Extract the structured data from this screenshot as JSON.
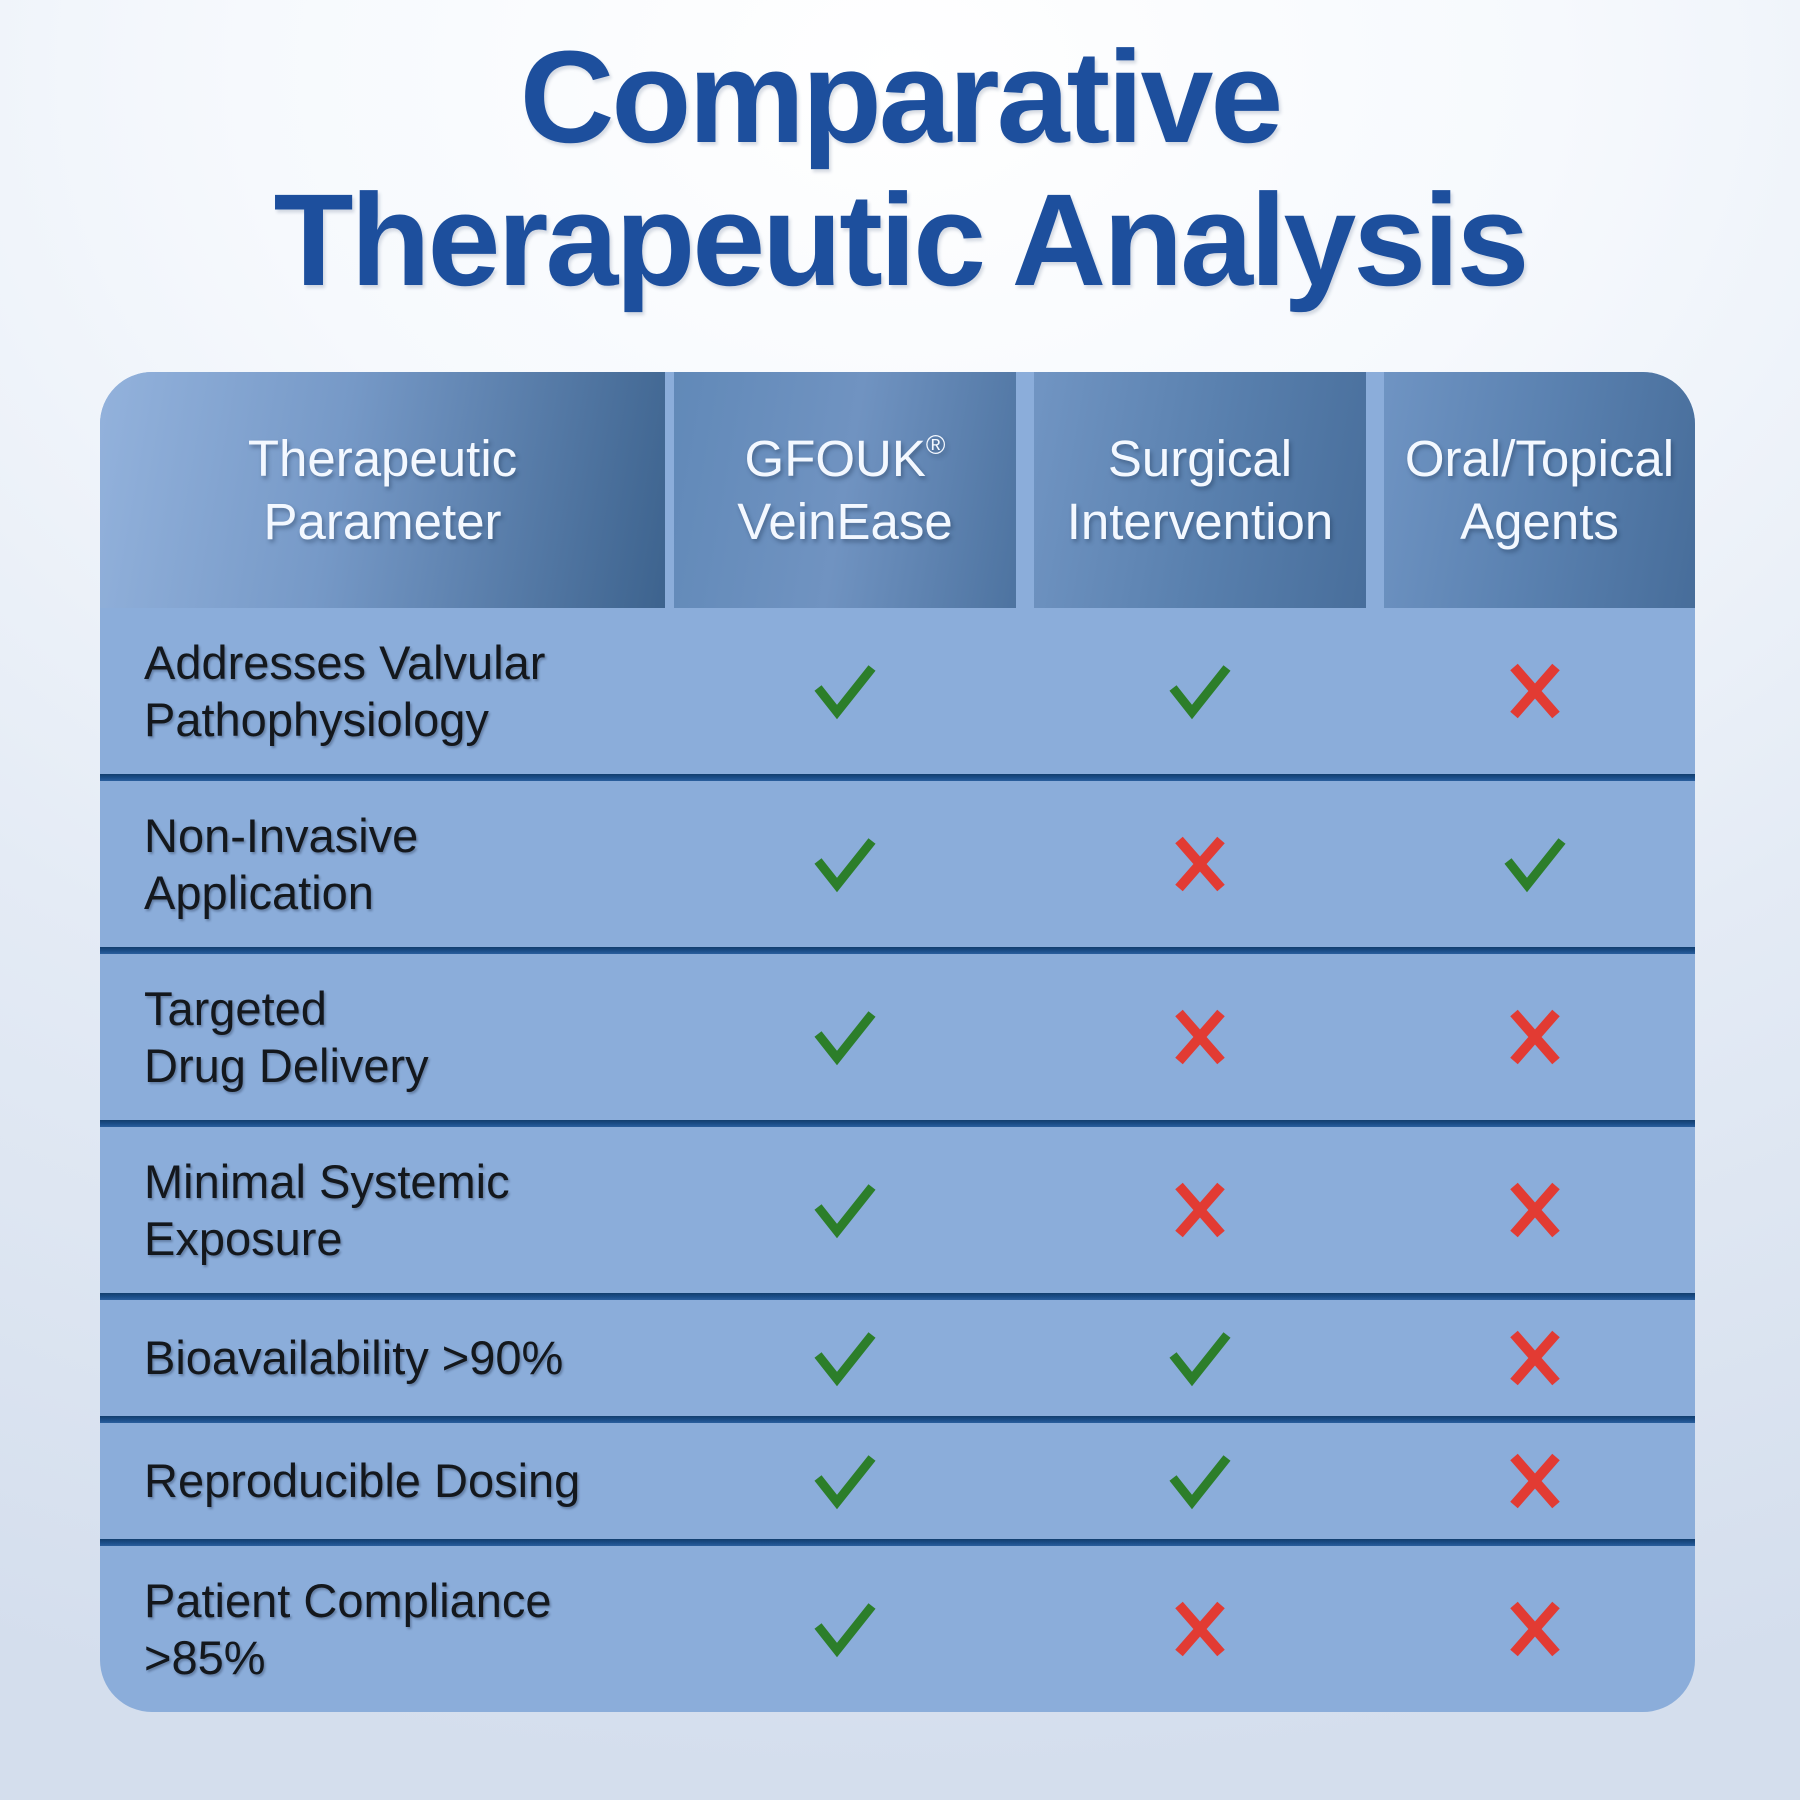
{
  "title": {
    "line1": "Comparative",
    "line2": "Therapeutic Analysis"
  },
  "table": {
    "columns": [
      {
        "lines": [
          "Therapeutic",
          "Parameter"
        ]
      },
      {
        "lines": [
          "GFOUK®",
          "VeinEase"
        ]
      },
      {
        "lines": [
          "Surgical",
          "Intervention"
        ]
      },
      {
        "lines": [
          "Oral/Topical",
          "Agents"
        ]
      }
    ],
    "rows": [
      {
        "label_lines": [
          "Addresses Valvular",
          "Pathophysiology"
        ],
        "marks": [
          "check",
          "check",
          "cross"
        ]
      },
      {
        "label_lines": [
          "Non-Invasive",
          "Application"
        ],
        "marks": [
          "check",
          "cross",
          "check"
        ]
      },
      {
        "label_lines": [
          "Targeted",
          "Drug Delivery"
        ],
        "marks": [
          "check",
          "cross",
          "cross"
        ]
      },
      {
        "label_lines": [
          "Minimal Systemic",
          "Exposure"
        ],
        "marks": [
          "check",
          "cross",
          "cross"
        ]
      },
      {
        "label_lines": [
          "Bioavailability >90%"
        ],
        "marks": [
          "check",
          "check",
          "cross"
        ]
      },
      {
        "label_lines": [
          "Reproducible Dosing"
        ],
        "marks": [
          "check",
          "check",
          "cross"
        ]
      },
      {
        "label_lines": [
          "Patient Compliance",
          ">85%"
        ],
        "marks": [
          "check",
          "cross",
          "cross"
        ]
      }
    ]
  },
  "colors": {
    "title_blue": "#1d4f9d",
    "body_blue": "#8badda",
    "divider_blue": "#1b4e89",
    "check_green": "#2c7e2a",
    "cross_red": "#e23b33",
    "header_text": "#f3f8ff",
    "label_text": "#14181d"
  },
  "chart_data": {
    "type": "table",
    "title": "Comparative Therapeutic Analysis",
    "columns": [
      "Therapeutic Parameter",
      "GFOUK® VeinEase",
      "Surgical Intervention",
      "Oral/Topical Agents"
    ],
    "rows": [
      [
        "Addresses Valvular Pathophysiology",
        "yes",
        "yes",
        "no"
      ],
      [
        "Non-Invasive Application",
        "yes",
        "no",
        "yes"
      ],
      [
        "Targeted Drug Delivery",
        "yes",
        "no",
        "no"
      ],
      [
        "Minimal Systemic Exposure",
        "yes",
        "no",
        "no"
      ],
      [
        "Bioavailability >90%",
        "yes",
        "yes",
        "no"
      ],
      [
        "Reproducible Dosing",
        "yes",
        "yes",
        "no"
      ],
      [
        "Patient Compliance >85%",
        "yes",
        "no",
        "no"
      ]
    ],
    "legend": {
      "yes": "green check mark",
      "no": "red cross mark"
    }
  }
}
